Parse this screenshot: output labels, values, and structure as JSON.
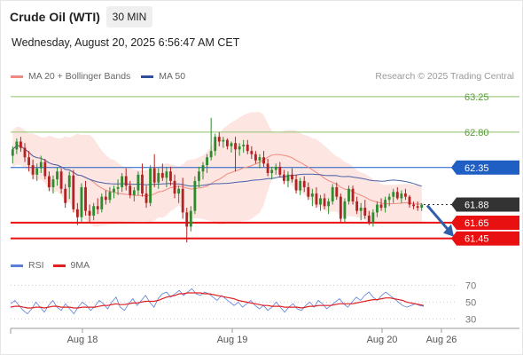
{
  "header": {
    "title": "Crude Oil (WTI)",
    "timeframe": "30 MIN",
    "timestamp": "Wednesday, August 20, 2025 6:56:47 AM CET"
  },
  "legend": {
    "items": [
      {
        "label": "MA 20 + Bollinger Bands",
        "color": "#f08a80"
      },
      {
        "label": "MA 50",
        "color": "#2f4f9a"
      }
    ],
    "credit": "Research © 2025 Trading Central"
  },
  "rsi_legend": {
    "items": [
      {
        "label": "RSI",
        "color": "#5b7fd6"
      },
      {
        "label": "9MA",
        "color": "#e02020"
      }
    ]
  },
  "chart_data": [
    {
      "type": "candlestick",
      "title": "",
      "ylim": [
        61.3,
        63.35
      ],
      "levels": [
        {
          "value": 63.25,
          "label": "63.25",
          "color": "#8dc36b",
          "style": "line"
        },
        {
          "value": 62.8,
          "label": "62.80",
          "color": "#8dc36b",
          "style": "line"
        },
        {
          "value": 62.35,
          "label": "62.35",
          "color": "#1f5fc4",
          "style": "line"
        },
        {
          "value": 61.88,
          "label": "61.88",
          "color": "#333333",
          "style": "dotted"
        },
        {
          "value": 61.65,
          "label": "61.65",
          "color": "#e81010",
          "style": "thick"
        },
        {
          "value": 61.45,
          "label": "61.45",
          "color": "#e81010",
          "style": "thick"
        }
      ],
      "forecast_arrow": {
        "from": 61.88,
        "to": 61.45,
        "color": "#2f5fa8"
      },
      "x_labels": [
        "Aug 18",
        "Aug 19",
        "Aug 20",
        "Aug 26"
      ],
      "ohlc": [
        [
          62.5,
          62.62,
          62.4,
          62.58
        ],
        [
          62.58,
          62.72,
          62.52,
          62.68
        ],
        [
          62.68,
          62.74,
          62.55,
          62.6
        ],
        [
          62.6,
          62.66,
          62.42,
          62.48
        ],
        [
          62.48,
          62.56,
          62.3,
          62.38
        ],
        [
          62.38,
          62.45,
          62.2,
          62.26
        ],
        [
          62.26,
          62.4,
          62.18,
          62.34
        ],
        [
          62.34,
          62.5,
          62.28,
          62.42
        ],
        [
          62.42,
          62.46,
          62.2,
          62.24
        ],
        [
          62.24,
          62.3,
          62.05,
          62.1
        ],
        [
          62.1,
          62.25,
          62.02,
          62.2
        ],
        [
          62.2,
          62.35,
          62.12,
          62.3
        ],
        [
          62.3,
          62.34,
          62.02,
          62.08
        ],
        [
          62.08,
          62.14,
          61.84,
          61.9
        ],
        [
          62.1,
          62.3,
          61.95,
          62.25
        ],
        [
          62.25,
          62.32,
          61.78,
          61.82
        ],
        [
          61.82,
          61.9,
          61.62,
          61.72
        ],
        [
          61.72,
          62.15,
          61.66,
          62.1
        ],
        [
          62.1,
          62.18,
          61.74,
          61.8
        ],
        [
          61.8,
          61.88,
          61.66,
          61.74
        ],
        [
          61.74,
          61.9,
          61.68,
          61.86
        ],
        [
          61.86,
          61.96,
          61.76,
          61.82
        ],
        [
          61.82,
          62.02,
          61.78,
          61.98
        ],
        [
          61.98,
          62.06,
          61.88,
          61.94
        ],
        [
          61.94,
          62.1,
          61.9,
          62.04
        ],
        [
          62.04,
          62.12,
          61.96,
          62.08
        ],
        [
          62.08,
          62.2,
          62.0,
          62.1
        ],
        [
          62.1,
          62.28,
          62.04,
          62.24
        ],
        [
          62.24,
          62.34,
          62.06,
          62.12
        ],
        [
          62.12,
          62.18,
          61.96,
          62.0
        ],
        [
          62.0,
          62.1,
          61.92,
          62.06
        ],
        [
          62.06,
          62.3,
          62.0,
          62.26
        ],
        [
          62.26,
          62.4,
          61.98,
          62.02
        ],
        [
          62.02,
          62.12,
          61.84,
          61.9
        ],
        [
          61.9,
          62.38,
          61.86,
          62.34
        ],
        [
          62.34,
          62.52,
          62.1,
          62.16
        ],
        [
          62.16,
          62.34,
          62.08,
          62.28
        ],
        [
          62.28,
          62.4,
          62.18,
          62.22
        ],
        [
          62.22,
          62.36,
          62.1,
          62.3
        ],
        [
          62.3,
          62.36,
          62.12,
          62.18
        ],
        [
          62.18,
          62.26,
          61.96,
          62.02
        ],
        [
          62.02,
          62.12,
          61.9,
          62.08
        ],
        [
          62.08,
          62.22,
          61.7,
          61.78
        ],
        [
          61.78,
          61.84,
          61.4,
          61.6
        ],
        [
          61.6,
          61.86,
          61.54,
          61.8
        ],
        [
          61.8,
          62.24,
          61.76,
          62.18
        ],
        [
          62.18,
          62.36,
          62.1,
          62.3
        ],
        [
          62.3,
          62.42,
          62.2,
          62.38
        ],
        [
          62.38,
          62.52,
          62.28,
          62.48
        ],
        [
          62.48,
          62.98,
          62.44,
          62.56
        ],
        [
          62.56,
          62.78,
          62.5,
          62.74
        ],
        [
          62.74,
          62.8,
          62.62,
          62.68
        ],
        [
          62.68,
          62.74,
          62.6,
          62.7
        ],
        [
          62.7,
          62.72,
          62.58,
          62.62
        ],
        [
          62.62,
          62.68,
          62.54,
          62.66
        ],
        [
          62.66,
          62.74,
          62.3,
          62.58
        ],
        [
          62.58,
          62.66,
          62.5,
          62.62
        ],
        [
          62.62,
          62.7,
          62.54,
          62.64
        ],
        [
          62.64,
          62.7,
          62.52,
          62.56
        ],
        [
          62.56,
          62.62,
          62.46,
          62.52
        ],
        [
          62.52,
          62.56,
          62.4,
          62.44
        ],
        [
          62.44,
          62.52,
          62.34,
          62.48
        ],
        [
          62.48,
          62.56,
          62.36,
          62.4
        ],
        [
          62.4,
          62.46,
          62.24,
          62.28
        ],
        [
          62.28,
          62.36,
          62.2,
          62.32
        ],
        [
          62.32,
          62.4,
          62.26,
          62.36
        ],
        [
          62.36,
          62.42,
          62.22,
          62.26
        ],
        [
          62.26,
          62.32,
          62.14,
          62.18
        ],
        [
          62.18,
          62.3,
          62.1,
          62.26
        ],
        [
          62.26,
          62.34,
          62.16,
          62.2
        ],
        [
          62.2,
          62.26,
          62.02,
          62.06
        ],
        [
          62.06,
          62.22,
          62.0,
          62.18
        ],
        [
          62.18,
          62.24,
          62.04,
          62.1
        ],
        [
          62.1,
          62.16,
          61.94,
          61.98
        ],
        [
          61.98,
          62.08,
          61.86,
          62.02
        ],
        [
          62.02,
          62.1,
          61.84,
          61.88
        ],
        [
          61.88,
          62.0,
          61.8,
          61.96
        ],
        [
          61.96,
          62.02,
          61.82,
          61.86
        ],
        [
          61.86,
          61.96,
          61.76,
          61.92
        ],
        [
          61.92,
          62.14,
          61.88,
          62.1
        ],
        [
          62.1,
          62.16,
          61.94,
          61.98
        ],
        [
          61.98,
          62.02,
          61.66,
          61.7
        ],
        [
          61.7,
          61.96,
          61.66,
          61.92
        ],
        [
          61.92,
          62.12,
          61.88,
          62.08
        ],
        [
          62.08,
          62.12,
          61.88,
          61.92
        ],
        [
          61.92,
          61.98,
          61.76,
          61.8
        ],
        [
          61.8,
          61.9,
          61.68,
          61.84
        ],
        [
          61.84,
          61.94,
          61.7,
          61.74
        ],
        [
          61.74,
          61.8,
          61.62,
          61.66
        ],
        [
          61.66,
          61.82,
          61.6,
          61.78
        ],
        [
          61.78,
          61.92,
          61.72,
          61.88
        ],
        [
          61.88,
          61.96,
          61.8,
          61.84
        ],
        [
          61.84,
          61.98,
          61.78,
          61.94
        ],
        [
          61.94,
          62.02,
          61.86,
          61.98
        ],
        [
          61.98,
          62.08,
          61.9,
          62.04
        ],
        [
          62.04,
          62.1,
          61.94,
          61.96
        ],
        [
          61.96,
          62.06,
          61.9,
          62.02
        ],
        [
          62.02,
          62.08,
          61.94,
          61.98
        ],
        [
          61.98,
          62.0,
          61.84,
          61.88
        ],
        [
          61.88,
          61.92,
          61.82,
          61.86
        ],
        [
          61.86,
          61.92,
          61.8,
          61.84
        ],
        [
          61.84,
          61.9,
          61.8,
          61.88
        ]
      ]
    },
    {
      "type": "line",
      "title": "",
      "ylim": [
        25,
        78
      ],
      "ticks": [
        70,
        50,
        30
      ],
      "tick_labels": [
        "70",
        "50",
        "30"
      ],
      "series": [
        {
          "name": "RSI",
          "color": "#5b7fd6",
          "values": [
            48,
            52,
            46,
            40,
            36,
            42,
            50,
            44,
            38,
            46,
            52,
            44,
            40,
            48,
            42,
            36,
            44,
            50,
            46,
            40,
            45,
            52,
            48,
            42,
            50,
            56,
            44,
            40,
            48,
            54,
            46,
            52,
            58,
            50,
            44,
            54,
            60,
            62,
            56,
            60,
            64,
            58,
            62,
            66,
            60,
            58,
            62,
            60,
            56,
            52,
            58,
            54,
            50,
            46,
            50,
            44,
            48,
            52,
            46,
            42,
            46,
            40,
            44,
            50,
            44,
            38,
            44,
            48,
            42,
            40,
            46,
            50,
            44,
            52,
            48,
            42,
            46,
            50,
            54,
            48,
            44,
            50,
            56,
            52,
            58,
            62,
            56,
            52,
            58,
            62,
            58,
            54,
            50,
            46,
            44,
            46,
            48,
            46,
            45
          ]
        },
        {
          "name": "9MA",
          "color": "#e02020",
          "values": [
            44,
            45,
            45,
            44,
            43,
            43,
            44,
            44,
            43,
            44,
            45,
            45,
            44,
            44,
            44,
            43,
            43,
            44,
            44,
            44,
            44,
            45,
            46,
            46,
            47,
            48,
            47,
            47,
            48,
            49,
            49,
            50,
            51,
            51,
            51,
            52,
            54,
            56,
            57,
            58,
            60,
            60,
            61,
            61,
            61,
            61,
            60,
            60,
            59,
            58,
            57,
            56,
            55,
            54,
            52,
            51,
            50,
            49,
            48,
            47,
            46,
            46,
            45,
            45,
            45,
            44,
            44,
            44,
            44,
            43,
            44,
            45,
            45,
            46,
            46,
            46,
            46,
            47,
            48,
            48,
            48,
            48,
            49,
            50,
            51,
            52,
            53,
            53,
            54,
            55,
            55,
            54,
            53,
            52,
            50,
            49,
            48,
            47,
            46
          ]
        }
      ]
    }
  ]
}
